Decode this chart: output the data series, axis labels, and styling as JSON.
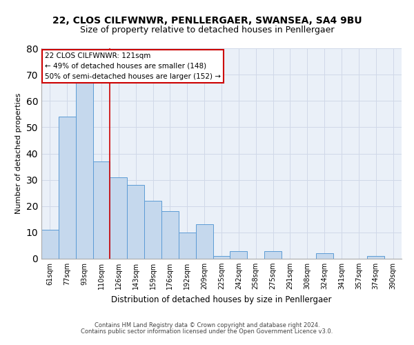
{
  "title_line1": "22, CLOS CILFWNWR, PENLLERGAER, SWANSEA, SA4 9BU",
  "title_line2": "Size of property relative to detached houses in Penllergaer",
  "xlabel": "Distribution of detached houses by size in Penllergaer",
  "ylabel": "Number of detached properties",
  "categories": [
    "61sqm",
    "77sqm",
    "93sqm",
    "110sqm",
    "126sqm",
    "143sqm",
    "159sqm",
    "176sqm",
    "192sqm",
    "209sqm",
    "225sqm",
    "242sqm",
    "258sqm",
    "275sqm",
    "291sqm",
    "308sqm",
    "324sqm",
    "341sqm",
    "357sqm",
    "374sqm",
    "390sqm"
  ],
  "values": [
    11,
    54,
    68,
    37,
    31,
    28,
    22,
    18,
    10,
    13,
    1,
    3,
    0,
    3,
    0,
    0,
    2,
    0,
    0,
    1,
    0
  ],
  "bar_color": "#c5d8ed",
  "bar_edge_color": "#5b9bd5",
  "grid_color": "#d0d8e8",
  "background_color": "#eaf0f8",
  "vline_x": 3.5,
  "vline_color": "#cc0000",
  "annotation_title": "22 CLOS CILFWNWR: 121sqm",
  "annotation_line1": "← 49% of detached houses are smaller (148)",
  "annotation_line2": "50% of semi-detached houses are larger (152) →",
  "annotation_box_facecolor": "#ffffff",
  "annotation_box_edgecolor": "#cc0000",
  "ylim": [
    0,
    80
  ],
  "yticks": [
    0,
    10,
    20,
    30,
    40,
    50,
    60,
    70,
    80
  ],
  "title_fontsize": 10,
  "subtitle_fontsize": 9,
  "footer_line1": "Contains HM Land Registry data © Crown copyright and database right 2024.",
  "footer_line2": "Contains public sector information licensed under the Open Government Licence v3.0."
}
